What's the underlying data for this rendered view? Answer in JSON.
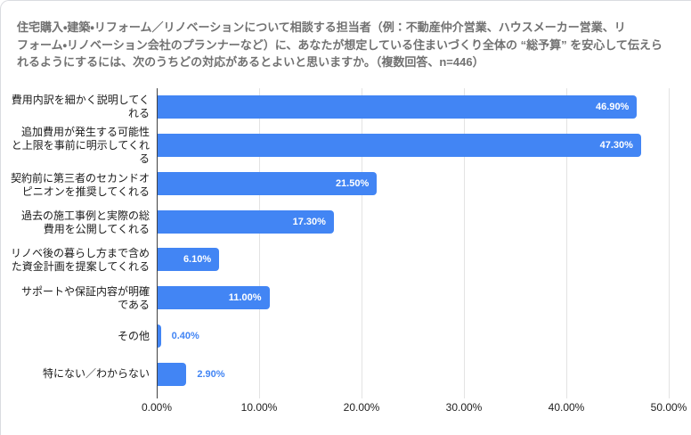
{
  "title": "住宅購入・建築・リフォーム／リノベーションについて相談する担当者（例：不動産仲介営業、ハウスメーカー営業、リ\nフォーム・リノベーション会社のプランナーなど）に、あなたが想定している住まいづくり全体の “総予算” を安心して伝えら\nれるようにするには、次のうちどの対応があるとよいと思いますか。（複数回答、n=446）",
  "colors": {
    "bar": "#4285f4",
    "axis_line": "#424242",
    "gridline": "#e3e3e3",
    "title_text": "#717171",
    "category_text": "#1a1a1a",
    "tick_text": "#222222",
    "value_label_inside": "#ffffff",
    "value_label_outside": "#4285f4",
    "card_border": "#dadce0"
  },
  "chart_data": {
    "type": "bar",
    "orientation": "horizontal",
    "title": "住宅購入・建築・リフォーム／リノベーションについて相談する担当者（例：不動産仲介営業、ハウスメーカー営業、リフォーム・リノベーション会社のプランナーなど）に、あなたが想定している住まいづくり全体の “総予算” を安心して伝えられるようにするには、次のうちどの対応があるとよいと思いますか。（複数回答、n=446）",
    "n_label": "n=446",
    "categories": [
      "費用内訳を細かく説明してくれる",
      "追加費用が発生する可能性と上限を事前に明示してくれる",
      "契約前に第三者のセカンドオピニオンを推奨してくれる",
      "過去の施工事例と実際の総費用を公開してくれる",
      "リノベ後の暮らし方まで含めた資金計画を提案してくれる",
      "サポートや保証内容が明確である",
      "その他",
      "特にない／わからない"
    ],
    "values": [
      46.9,
      47.3,
      21.5,
      17.3,
      6.1,
      11.0,
      0.4,
      2.9
    ],
    "xlim": [
      0,
      50
    ],
    "x_ticks": [
      "0.00%",
      "10.00%",
      "20.00%",
      "30.00%",
      "40.00%",
      "50.00%"
    ],
    "gridlines": true,
    "legend": "none",
    "rows": [
      {
        "label": "費用内訳を細かく説明してく\nれる",
        "value": 46.9,
        "value_label": "46.90%"
      },
      {
        "label": "追加費用が発生する可能性\nと上限を事前に明示してくれ\nる",
        "value": 47.3,
        "value_label": "47.30%"
      },
      {
        "label": "契約前に第三者のセカンドオ\nピニオンを推奨してくれる",
        "value": 21.5,
        "value_label": "21.50%"
      },
      {
        "label": "過去の施工事例と実際の総\n費用を公開してくれる",
        "value": 17.3,
        "value_label": "17.30%"
      },
      {
        "label": "リノベ後の暮らし方まで含め\nた資金計画を提案してくれる",
        "value": 6.1,
        "value_label": "6.10%"
      },
      {
        "label": "サポートや保証内容が明確\nである",
        "value": 11.0,
        "value_label": "11.00%"
      },
      {
        "label": "その他",
        "value": 0.4,
        "value_label": "0.40%"
      },
      {
        "label": "特にない／わからない",
        "value": 2.9,
        "value_label": "2.90%"
      }
    ]
  }
}
